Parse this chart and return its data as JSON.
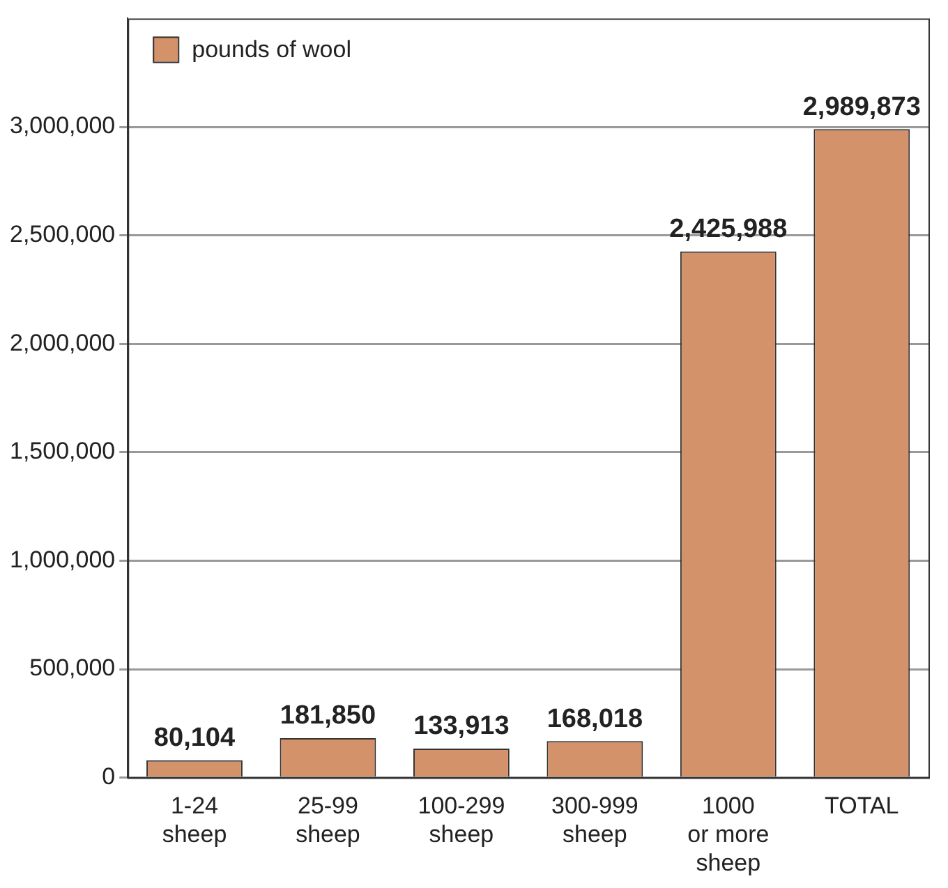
{
  "chart_data": {
    "type": "bar",
    "categories": [
      "1-24\nsheep",
      "25-99\nsheep",
      "100-299\nsheep",
      "300-999\nsheep",
      "1000\nor more\nsheep",
      "TOTAL"
    ],
    "series": [
      {
        "name": "pounds of wool",
        "color": "#d4926a",
        "values": [
          80104,
          181850,
          133913,
          168018,
          2425988,
          2989873
        ],
        "value_labels": [
          "80,104",
          "181,850",
          "133,913",
          "168,018",
          "2,425,988",
          "2,989,873"
        ]
      }
    ],
    "ylim": [
      0,
      3500000
    ],
    "yticks": [
      {
        "value": 0,
        "label": "0"
      },
      {
        "value": 500000,
        "label": "500,000"
      },
      {
        "value": 1000000,
        "label": "1,000,000"
      },
      {
        "value": 1500000,
        "label": "1,500,000"
      },
      {
        "value": 2000000,
        "label": "2,000,000"
      },
      {
        "value": 2500000,
        "label": "2,500,000"
      },
      {
        "value": 3000000,
        "label": "3,000,000"
      }
    ],
    "grid": "y",
    "legend": "top left"
  }
}
